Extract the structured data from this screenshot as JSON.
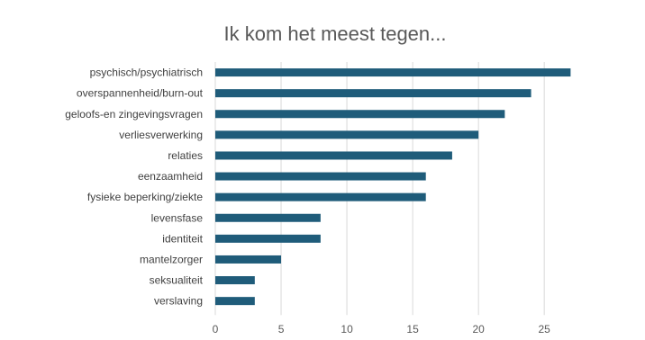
{
  "chart_data": {
    "type": "bar",
    "orientation": "horizontal",
    "title": "Ik kom het meest tegen...",
    "categories": [
      "psychisch/psychiatrisch",
      "overspannenheid/burn-out",
      "geloofs-en zingevingsvragen",
      "verliesverwerking",
      "relaties",
      "eenzaamheid",
      "fysieke beperking/ziekte",
      "levensfase",
      "identiteit",
      "mantelzorger",
      "seksualiteit",
      "verslaving"
    ],
    "values": [
      27,
      24,
      22,
      20,
      18,
      16,
      16,
      8,
      8,
      5,
      3,
      3
    ],
    "xlim": [
      0,
      28
    ],
    "xticks": [
      0,
      5,
      10,
      15,
      20,
      25
    ],
    "xlabel": "",
    "ylabel": "",
    "grid": true,
    "legend": "none",
    "bar_color": "#1f5c7a",
    "grid_color": "#d9d9d9"
  }
}
